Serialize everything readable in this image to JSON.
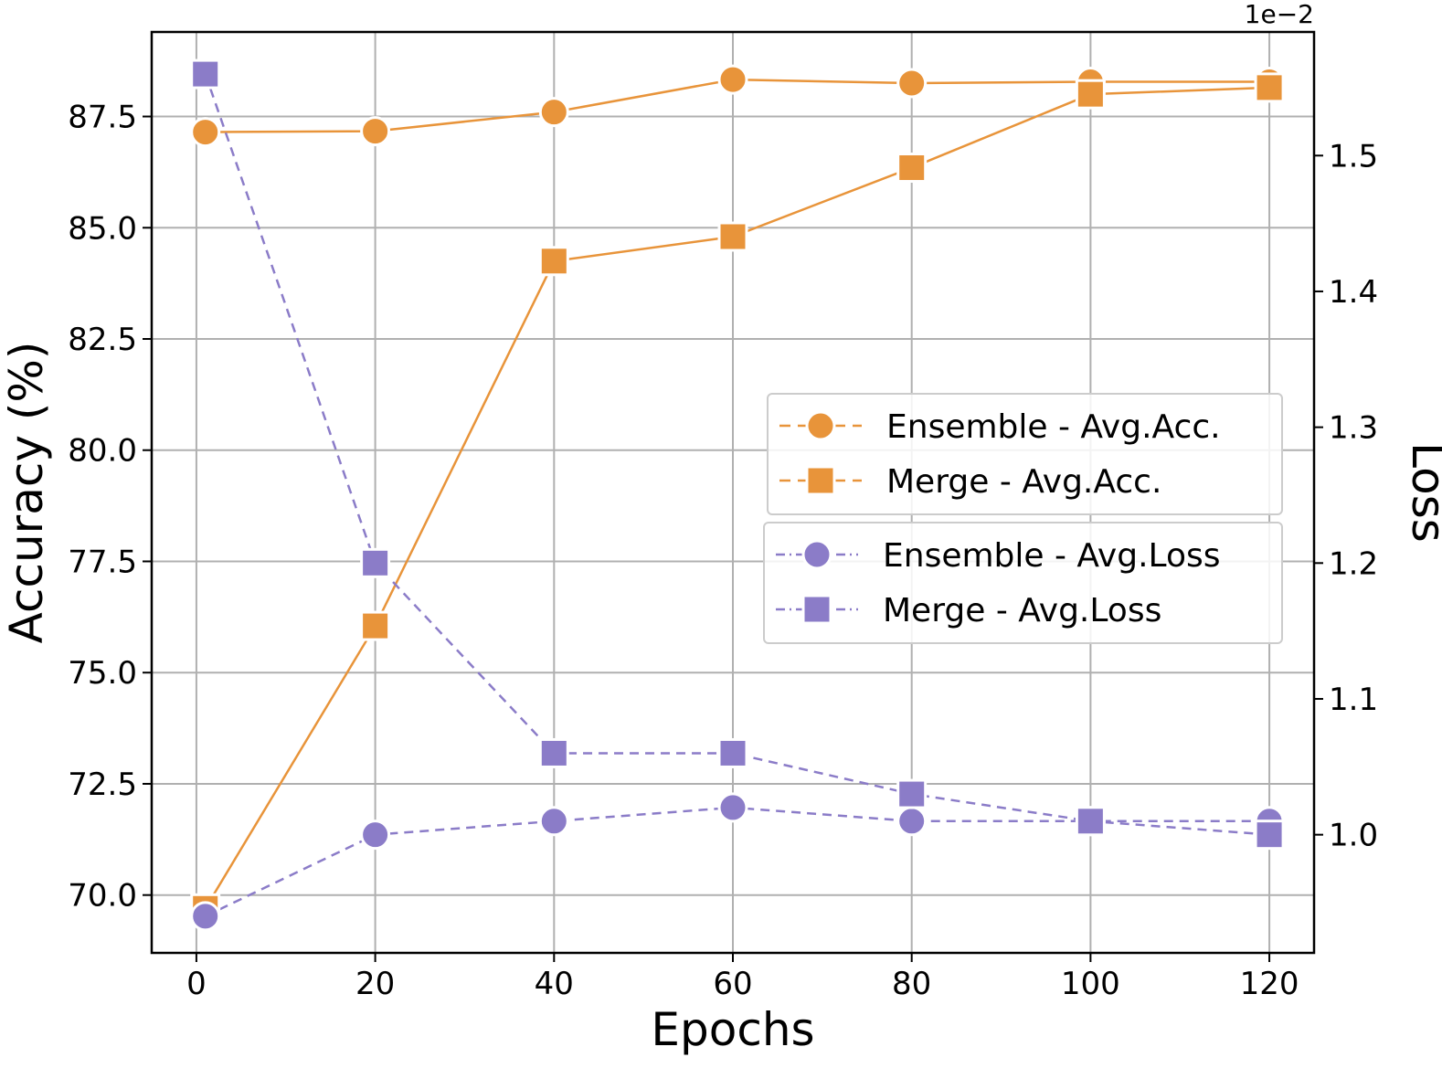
{
  "chart_data": {
    "type": "line",
    "xlabel": "Epochs",
    "ylabel_left": "Accuracy (%)",
    "ylabel_right": "Loss",
    "right_axis_offset": "1e−2",
    "x": [
      1,
      20,
      40,
      60,
      80,
      100,
      120
    ],
    "xlim": [
      -5,
      125
    ],
    "ylim_left": [
      68.7,
      89.4
    ],
    "ylim_right": [
      0.913,
      1.591
    ],
    "x_ticks": [
      0,
      20,
      40,
      60,
      80,
      100,
      120
    ],
    "x_tick_labels": [
      "0",
      "20",
      "40",
      "60",
      "80",
      "100",
      "120"
    ],
    "y_left_ticks": [
      70.0,
      72.5,
      75.0,
      77.5,
      80.0,
      82.5,
      85.0,
      87.5
    ],
    "y_left_tick_labels": [
      "70.0",
      "72.5",
      "75.0",
      "77.5",
      "80.0",
      "82.5",
      "85.0",
      "87.5"
    ],
    "y_right_ticks": [
      1.0,
      1.1,
      1.2,
      1.3,
      1.4,
      1.5
    ],
    "y_right_tick_labels": [
      "1.0",
      "1.1",
      "1.2",
      "1.3",
      "1.4",
      "1.5"
    ],
    "grid": true,
    "series": [
      {
        "name": "Ensemble - Avg.Acc.",
        "axis": "left",
        "marker": "circle",
        "line": "solid",
        "color": "#E8943A",
        "values": [
          87.15,
          87.17,
          87.6,
          88.33,
          88.25,
          88.28,
          88.28
        ]
      },
      {
        "name": "Merge - Avg.Acc.",
        "axis": "left",
        "marker": "square",
        "line": "solid",
        "color": "#E8943A",
        "values": [
          69.7,
          76.05,
          84.25,
          84.8,
          86.35,
          88.0,
          88.15
        ]
      },
      {
        "name": "Ensemble - Avg.Loss",
        "axis": "right",
        "marker": "circle",
        "line": "dashed",
        "color": "#8B7CC8",
        "values": [
          0.94,
          1.0,
          1.01,
          1.02,
          1.01,
          1.01,
          1.01
        ]
      },
      {
        "name": "Merge - Avg.Loss",
        "axis": "right",
        "marker": "square",
        "line": "dashed",
        "color": "#8B7CC8",
        "values": [
          1.56,
          1.2,
          1.06,
          1.06,
          1.03,
          1.01,
          1.0
        ]
      }
    ],
    "legend": {
      "groups": [
        {
          "placement": "center-right",
          "entries": [
            "Ensemble - Avg.Acc.",
            "Merge - Avg.Acc."
          ]
        },
        {
          "placement": "center-right",
          "entries": [
            "Ensemble - Avg.Loss",
            "Merge - Avg.Loss"
          ]
        }
      ]
    }
  }
}
